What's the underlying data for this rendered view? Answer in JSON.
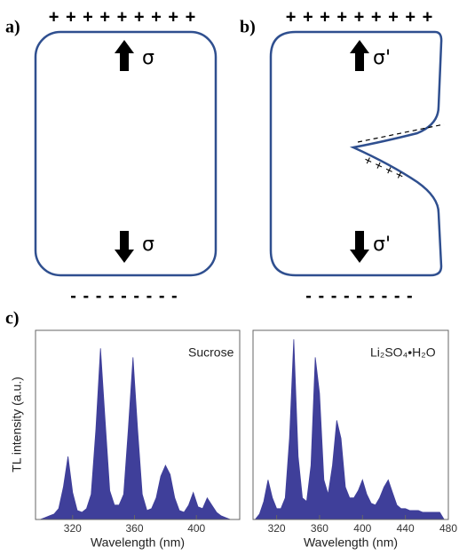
{
  "diagram": {
    "a": {
      "label": "a)",
      "top_charges": "+ + + + + + + + +",
      "bottom_charges": "- - - - - - - - -",
      "stress_top": "σ",
      "stress_bottom": "σ"
    },
    "b": {
      "label": "b)",
      "top_charges": "+ + + + + + + + +",
      "bottom_charges": "- - - - - - - - -",
      "stress_top": "σ'",
      "stress_bottom": "σ'",
      "crack_charges": "+ + + +"
    },
    "c": {
      "label": "c)"
    }
  },
  "chart_data": [
    {
      "type": "area",
      "y_label": "TL intensity (a.u.)",
      "x_label": "Wavelength (nm)",
      "annotation": "Sucrose",
      "color": "#3f3f9a",
      "x": [
        299,
        302,
        305,
        308,
        311,
        314,
        317,
        320,
        323,
        326,
        329,
        332,
        335,
        338,
        341,
        344,
        347,
        350,
        353,
        356,
        359,
        362,
        365,
        368,
        371,
        374,
        377,
        380,
        383,
        386,
        389,
        392,
        395,
        398,
        401,
        404,
        407,
        410,
        413,
        416,
        419,
        422,
        425
      ],
      "values": [
        0,
        1,
        2,
        3,
        6,
        18,
        35,
        15,
        5,
        4,
        6,
        14,
        50,
        95,
        55,
        16,
        8,
        8,
        14,
        50,
        90,
        50,
        14,
        5,
        6,
        12,
        24,
        30,
        25,
        12,
        5,
        4,
        8,
        15,
        7,
        6,
        12,
        8,
        4,
        2,
        1,
        0,
        0
      ],
      "xlim": [
        296,
        428
      ],
      "xticks": [
        320,
        360,
        400
      ],
      "ylim": [
        0,
        105
      ]
    },
    {
      "type": "area",
      "x_label": "Wavelength (nm)",
      "annotation": "Li₂SO₄•H₂O",
      "color": "#3f3f9a",
      "x": [
        300,
        304,
        308,
        312,
        316,
        320,
        324,
        328,
        332,
        336,
        340,
        344,
        348,
        352,
        356,
        360,
        364,
        368,
        372,
        376,
        380,
        384,
        388,
        392,
        396,
        400,
        404,
        408,
        412,
        416,
        420,
        424,
        428,
        432,
        436,
        440,
        444,
        448,
        452,
        456,
        460,
        464,
        468,
        472,
        476
      ],
      "values": [
        0,
        3,
        10,
        22,
        12,
        6,
        6,
        12,
        45,
        100,
        35,
        12,
        10,
        30,
        90,
        70,
        22,
        14,
        30,
        55,
        45,
        18,
        12,
        12,
        16,
        22,
        14,
        9,
        8,
        12,
        18,
        22,
        15,
        8,
        6,
        6,
        5,
        5,
        5,
        4,
        4,
        4,
        4,
        4,
        0
      ],
      "xlim": [
        298,
        480
      ],
      "xticks": [
        320,
        360,
        400,
        440,
        480
      ],
      "ylim": [
        0,
        105
      ]
    }
  ]
}
